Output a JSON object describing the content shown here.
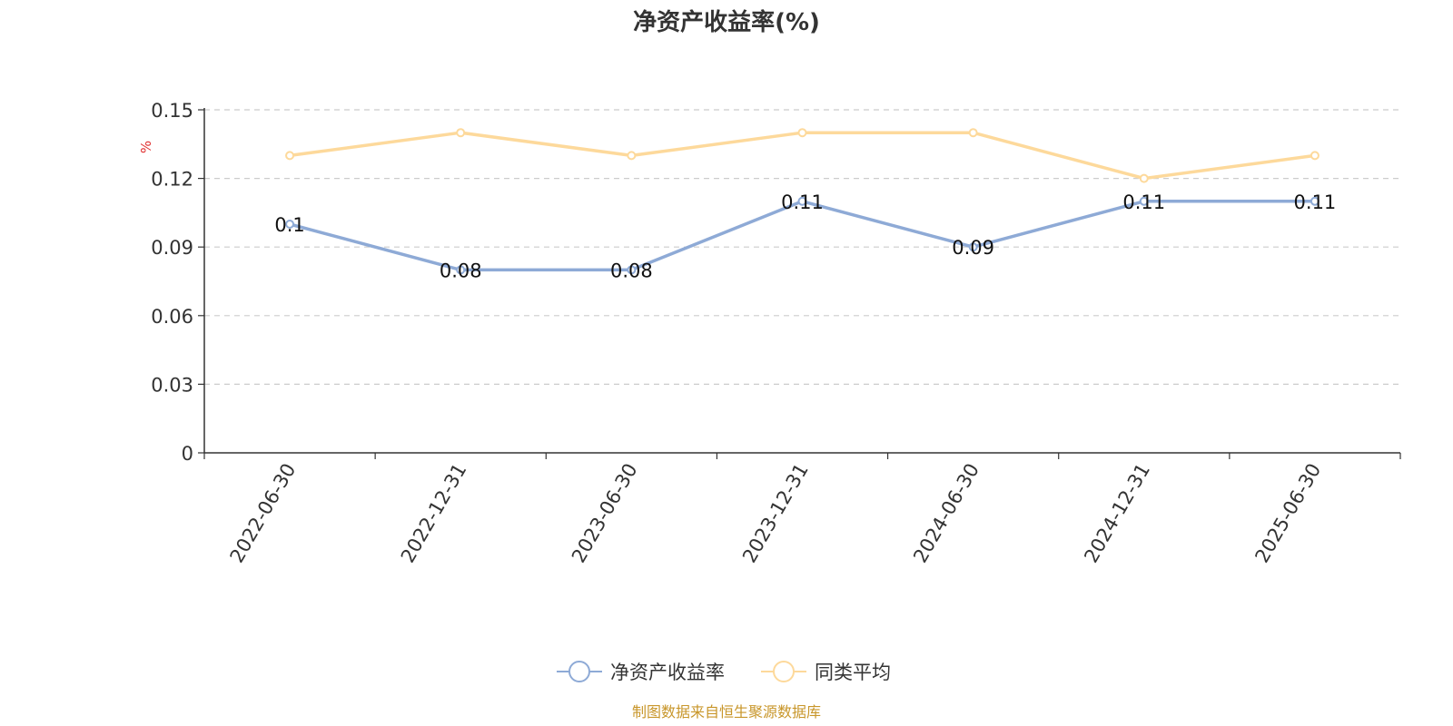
{
  "chart_data": {
    "type": "line",
    "title": "净资产收益率(%)",
    "ylabel": "%",
    "categories": [
      "2022-06-30",
      "2022-12-31",
      "2023-06-30",
      "2023-12-31",
      "2024-06-30",
      "2024-12-31",
      "2025-06-30"
    ],
    "series": [
      {
        "name": "净资产收益率",
        "values": [
          0.1,
          0.08,
          0.08,
          0.11,
          0.09,
          0.11,
          0.11
        ],
        "color": "#8eaad6",
        "labels": [
          "0.1",
          "0.08",
          "0.08",
          "0.11",
          "0.09",
          "0.11",
          "0.11"
        ]
      },
      {
        "name": "同类平均",
        "values": [
          0.13,
          0.14,
          0.13,
          0.14,
          0.14,
          0.12,
          0.13
        ],
        "color": "#fdd99b"
      }
    ],
    "yticks": [
      "0",
      "0.03",
      "0.06",
      "0.09",
      "0.12",
      "0.15"
    ],
    "ylim": [
      0,
      0.15
    ],
    "grid": true,
    "legend_position": "bottom-center"
  },
  "source_text": "制图数据来自恒生聚源数据库"
}
